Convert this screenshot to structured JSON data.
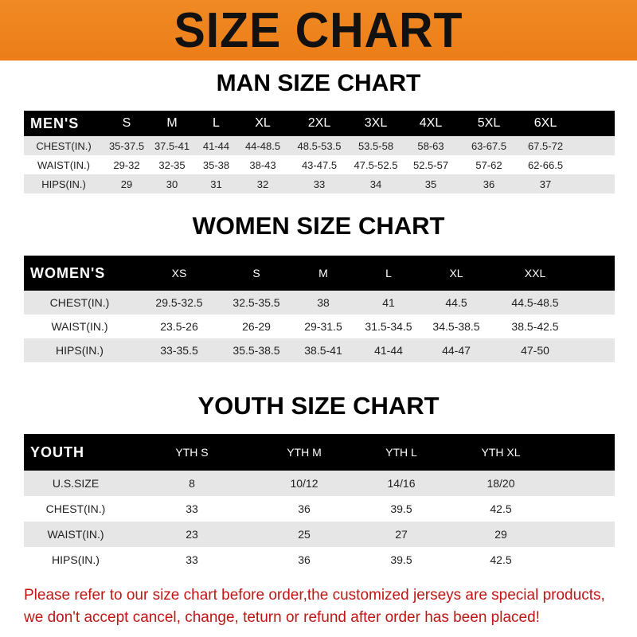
{
  "banner": "SIZE CHART",
  "men": {
    "title": "MAN SIZE CHART",
    "header": [
      "MEN'S",
      "S",
      "M",
      "L",
      "XL",
      "2XL",
      "3XL",
      "4XL",
      "5XL",
      "6XL"
    ],
    "rows": [
      [
        "CHEST(IN.)",
        "35-37.5",
        "37.5-41",
        "41-44",
        "44-48.5",
        "48.5-53.5",
        "53.5-58",
        "58-63",
        "63-67.5",
        "67.5-72"
      ],
      [
        "WAIST(IN.)",
        "29-32",
        "32-35",
        "35-38",
        "38-43",
        "43-47.5",
        "47.5-52.5",
        "52.5-57",
        "57-62",
        "62-66.5"
      ],
      [
        "HIPS(IN.)",
        "29",
        "30",
        "31",
        "32",
        "33",
        "34",
        "35",
        "36",
        "37"
      ]
    ]
  },
  "women": {
    "title": "WOMEN SIZE CHART",
    "header": [
      "WOMEN'S",
      "XS",
      "S",
      "M",
      "L",
      "XL",
      "XXL"
    ],
    "rows": [
      [
        "CHEST(IN.)",
        "29.5-32.5",
        "32.5-35.5",
        "38",
        "41",
        "44.5",
        "44.5-48.5"
      ],
      [
        "WAIST(IN.)",
        "23.5-26",
        "26-29",
        "29-31.5",
        "31.5-34.5",
        "34.5-38.5",
        "38.5-42.5"
      ],
      [
        "HIPS(IN.)",
        "33-35.5",
        "35.5-38.5",
        "38.5-41",
        "41-44",
        "44-47",
        "47-50"
      ]
    ]
  },
  "youth": {
    "title": "YOUTH SIZE CHART",
    "header": [
      "YOUTH",
      "YTH S",
      "YTH M",
      "YTH L",
      "YTH XL"
    ],
    "rows": [
      [
        "U.S.SIZE",
        "8",
        "10/12",
        "14/16",
        "18/20"
      ],
      [
        "CHEST(IN.)",
        "33",
        "36",
        "39.5",
        "42.5"
      ],
      [
        "WAIST(IN.)",
        "23",
        "25",
        "27",
        "29"
      ],
      [
        "HIPS(IN.)",
        "33",
        "36",
        "39.5",
        "42.5"
      ]
    ]
  },
  "notice": [
    "Please refer to our size chart before order,the customized jerseys are special products,",
    "we don't accept cancel, change, teturn or refund after order has been placed!"
  ],
  "colors": {
    "banner": "#ec7d18",
    "header_row": "#000000",
    "notice": "#c01616"
  }
}
